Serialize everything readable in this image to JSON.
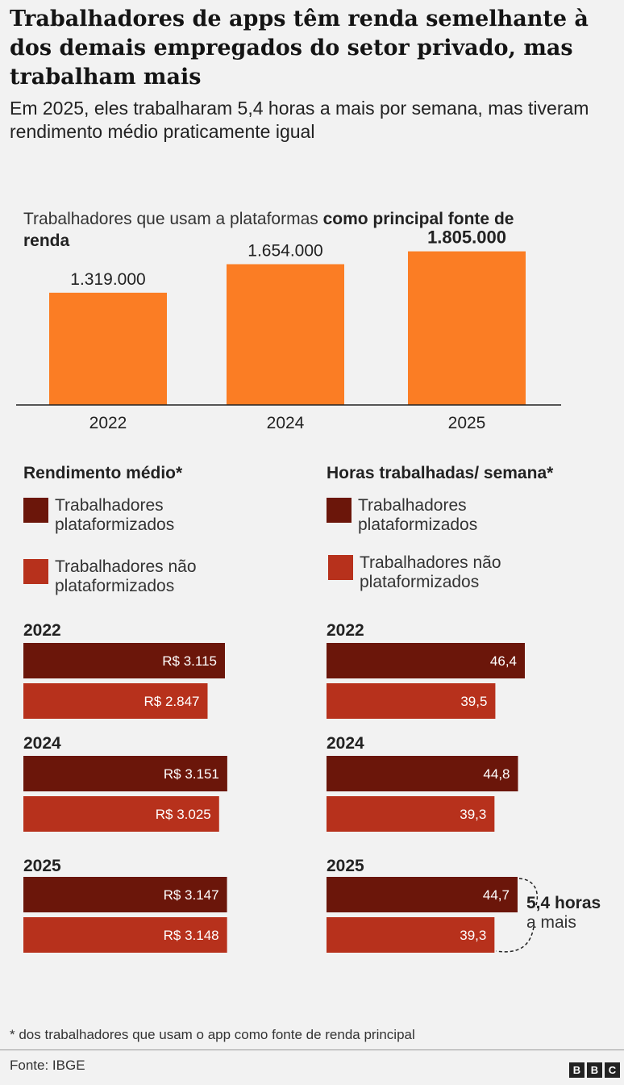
{
  "title": "Trabalhadores de apps têm renda semelhante à dos demais empregados do setor privado, mas trabalham mais",
  "subtitle": "Em 2025, eles trabalharam 5,4 horas a mais por semana, mas tiveram rendimento médio praticamente igual",
  "colors": {
    "top_bar": "#fb7d24",
    "plataformizados": "#6b160a",
    "nao_plataformizados": "#b7311c",
    "background": "#f2f2f2"
  },
  "chart_data": [
    {
      "type": "bar",
      "title_plain": "Trabalhadores que usam a plataformas ",
      "title_bold": "como principal fonte de renda",
      "categories": [
        "2022",
        "2024",
        "2025"
      ],
      "values": [
        1319000,
        1654000,
        1805000
      ],
      "value_labels": [
        "1.319.000",
        "1.654.000",
        "1.805.000"
      ],
      "ylim": [
        0,
        2000000
      ]
    },
    {
      "type": "bar",
      "orientation": "horizontal",
      "title": "Rendimento médio*",
      "legend": [
        "Trabalhadores plataformizados",
        "Trabalhadores não plataformizados"
      ],
      "categories": [
        "2022",
        "2024",
        "2025"
      ],
      "series": [
        {
          "name": "Trabalhadores plataformizados",
          "values": [
            3115,
            3151,
            3147
          ],
          "labels": [
            "R$ 3.115",
            "R$ 3.151",
            "R$ 3.147"
          ]
        },
        {
          "name": "Trabalhadores não plataformizados",
          "values": [
            2847,
            3025,
            3148
          ],
          "labels": [
            "R$ 2.847",
            "R$ 3.025",
            "R$ 3.148"
          ]
        }
      ]
    },
    {
      "type": "bar",
      "orientation": "horizontal",
      "title": "Horas trabalhadas/ semana*",
      "legend": [
        "Trabalhadores plataformizados",
        "Trabalhadores não plataformizados"
      ],
      "categories": [
        "2022",
        "2024",
        "2025"
      ],
      "series": [
        {
          "name": "Trabalhadores plataformizados",
          "values": [
            46.4,
            44.8,
            44.7
          ],
          "labels": [
            "46,4",
            "44,8",
            "44,7"
          ]
        },
        {
          "name": "Trabalhadores não plataformizados",
          "values": [
            39.5,
            39.3,
            39.3
          ],
          "labels": [
            "39,5",
            "39,3",
            "39,3"
          ]
        }
      ],
      "annotation_bold": "5,4 horas",
      "annotation_text": "a mais"
    }
  ],
  "footnote": "* dos trabalhadores que usam o app como fonte de renda principal",
  "source": "Fonte: IBGE",
  "logo_letters": [
    "B",
    "B",
    "C"
  ]
}
